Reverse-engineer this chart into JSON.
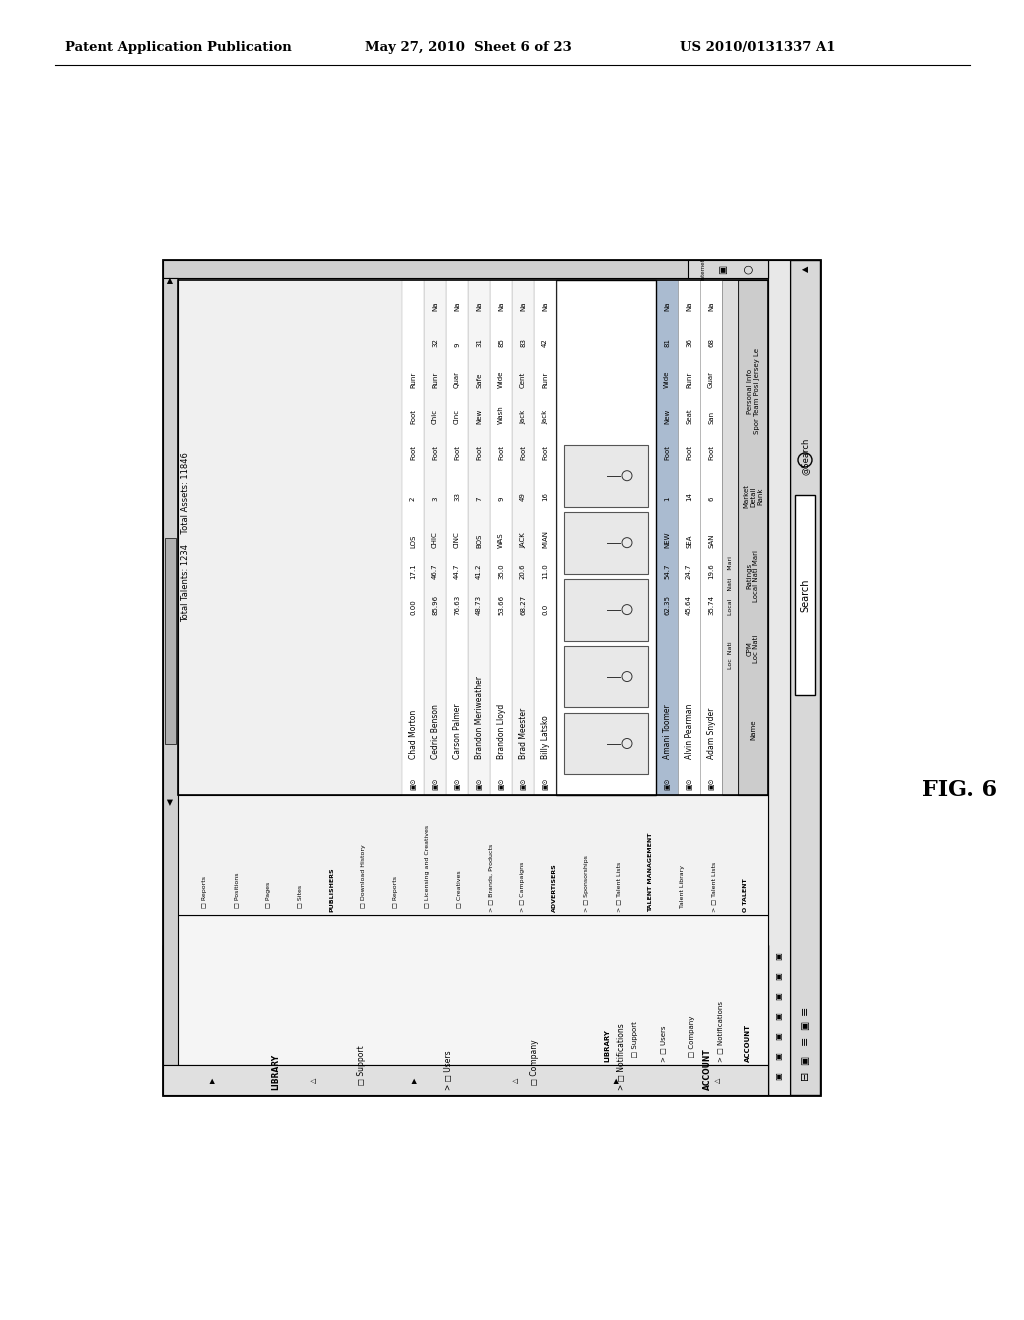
{
  "header_left": "Patent Application Publication",
  "header_mid": "May 27, 2010  Sheet 6 of 23",
  "header_right": "US 2010/0131337 A1",
  "fig_label": "FIG. 6",
  "bg_color": "#ffffff",
  "sidebar_items_col1": [
    "ACCOUNT",
    "> □ Notifications",
    "  □ Company",
    "> □ Users",
    "  □ Support",
    "LIBRARY"
  ],
  "sidebar_items_col2": [
    "O TALENT",
    "> □ Talent Lists",
    "  □ Talent Library",
    "TALENT MANAGEMENT",
    "> □ Talent Lists",
    "> □ Sponsorships",
    "ADVERTISERS",
    "> □ Campaigns",
    "> □ Brands, Products",
    "  □ Creatives",
    "  □ Licensing and Creatives",
    "  □ Reports",
    "  □ Download History",
    "PUBLISHERS",
    "  □ Sites",
    "  □ Pages",
    "  □ Positions",
    "  □ Reports"
  ],
  "rows_top3": [
    {
      "name": "Adam Snyder",
      "local": "35.74",
      "nati": "19.6",
      "mari": "SAN",
      "rank": "6",
      "sport": "Foot",
      "team": "San",
      "pos": "Guar",
      "jersey": "68",
      "le": "Na"
    },
    {
      "name": "Alvin Pearman",
      "local": "45.64",
      "nati": "24.7",
      "mari": "SEA",
      "rank": "14",
      "sport": "Foot",
      "team": "Seat",
      "pos": "Runr",
      "jersey": "36",
      "le": "Na"
    },
    {
      "name": "Amani Toomer",
      "local": "62.35",
      "nati": "54.7",
      "mari": "NEW",
      "rank": "1",
      "sport": "Foot",
      "team": "New",
      "pos": "Wide",
      "jersey": "81",
      "le": "Na"
    }
  ],
  "rows_bottom": [
    {
      "name": "Billy Latsko",
      "local": "0.0",
      "nati": "11.0",
      "mari": "MIAN",
      "rank": "16",
      "sport": "Foot",
      "team": "Jack",
      "pos": "Runr",
      "jersey": "42",
      "le": "Na"
    },
    {
      "name": "Brad Meester",
      "local": "68.27",
      "nati": "20.6",
      "mari": "JACK",
      "rank": "49",
      "sport": "Foot",
      "team": "Jack",
      "pos": "Cent",
      "jersey": "83",
      "le": "Na"
    },
    {
      "name": "Brandon Lloyd",
      "local": "53.66",
      "nati": "35.0",
      "mari": "WAS",
      "rank": "9",
      "sport": "Foot",
      "team": "Wash",
      "pos": "Wide",
      "jersey": "85",
      "le": "Na"
    },
    {
      "name": "Brandon Meriweather",
      "local": "48.73",
      "nati": "41.2",
      "mari": "BOS",
      "rank": "7",
      "sport": "Foot",
      "team": "New",
      "pos": "Safe",
      "jersey": "31",
      "le": "Na"
    },
    {
      "name": "Carson Palmer",
      "local": "76.63",
      "nati": "44.7",
      "mari": "CINC",
      "rank": "33",
      "sport": "Foot",
      "team": "Cinc",
      "pos": "Quar",
      "jersey": "9",
      "le": "Na"
    },
    {
      "name": "Cedric Benson",
      "local": "85.96",
      "nati": "46.7",
      "mari": "CHIC",
      "rank": "3",
      "sport": "Foot",
      "team": "Chic",
      "pos": "Runr",
      "jersey": "32",
      "le": "Na"
    },
    {
      "name": "Chad Morton",
      "local": "0.00",
      "nati": "17.1",
      "mari": "LOS",
      "rank": "2",
      "sport": "Foot",
      "team": "Foot",
      "pos": "Runr",
      "jersey": "",
      "le": ""
    }
  ],
  "footer_text": "Total Talents: 1234    Total Assets: 11846"
}
